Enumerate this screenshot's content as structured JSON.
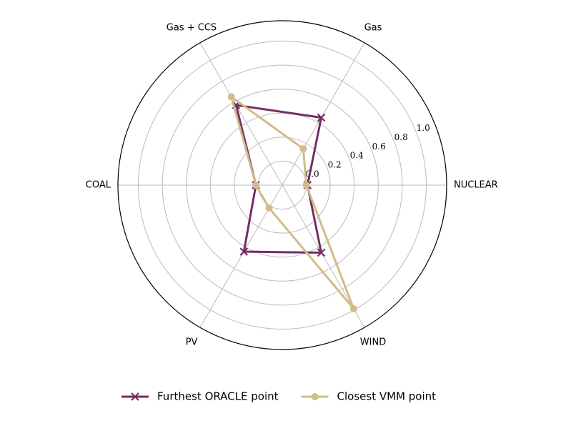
{
  "chart_data": {
    "type": "radar",
    "categories": [
      "NUCLEAR",
      "Gas",
      "Gas + CCS",
      "COAL",
      "PV",
      "WIND"
    ],
    "series": [
      {
        "name": "Furthest ORACLE point",
        "color": "#722f65",
        "marker": "x",
        "values": [
          0.01,
          0.45,
          0.57,
          0.02,
          0.44,
          0.45
        ]
      },
      {
        "name": "Closest VMM point",
        "color": "#d1bc8a",
        "marker": "o",
        "values": [
          0.0,
          0.15,
          0.65,
          0.02,
          0.02,
          0.99
        ]
      }
    ],
    "ylim": [
      -0.2,
      1.17
    ],
    "yticks": [
      {
        "value": 0,
        "label": "0.0"
      },
      0.2,
      0.4,
      0.6,
      0.8,
      {
        "value": 1,
        "label": "1.0"
      }
    ],
    "grid": true,
    "legend": "bottom"
  }
}
